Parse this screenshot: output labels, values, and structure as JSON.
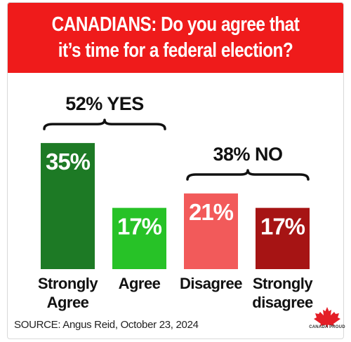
{
  "header": {
    "title_line1": "CANADIANS: Do you agree that",
    "title_line2": "it’s time for a federal election?",
    "background_color": "#ef1b1b"
  },
  "chart_data": {
    "type": "bar",
    "title": "CANADIANS: Do you agree that it’s time for a federal election?",
    "categories": [
      "Strongly Agree",
      "Agree",
      "Disagree",
      "Strongly disagree"
    ],
    "category_label_lines": [
      [
        "Strongly",
        "Agree"
      ],
      [
        "Agree"
      ],
      [
        "Disagree"
      ],
      [
        "Strongly",
        "disagree"
      ]
    ],
    "values": [
      35,
      17,
      21,
      17
    ],
    "value_labels": [
      "35%",
      "17%",
      "21%",
      "17%"
    ],
    "colors": [
      "#1d7a25",
      "#27c227",
      "#f25a5a",
      "#a61414"
    ],
    "groups": [
      {
        "label": "52% YES",
        "value": 52,
        "categories": [
          "Strongly Agree",
          "Agree"
        ]
      },
      {
        "label": "38% NO",
        "value": 38,
        "categories": [
          "Disagree",
          "Strongly disagree"
        ]
      }
    ],
    "xlabel": "",
    "ylabel": "",
    "grid": false,
    "legend": "none"
  },
  "source": "SOURCE: Angus Reid, October 23, 2024",
  "logo": {
    "text": "CANADA PROUD",
    "icon": "maple-leaf-icon",
    "color": "#e41e26"
  }
}
